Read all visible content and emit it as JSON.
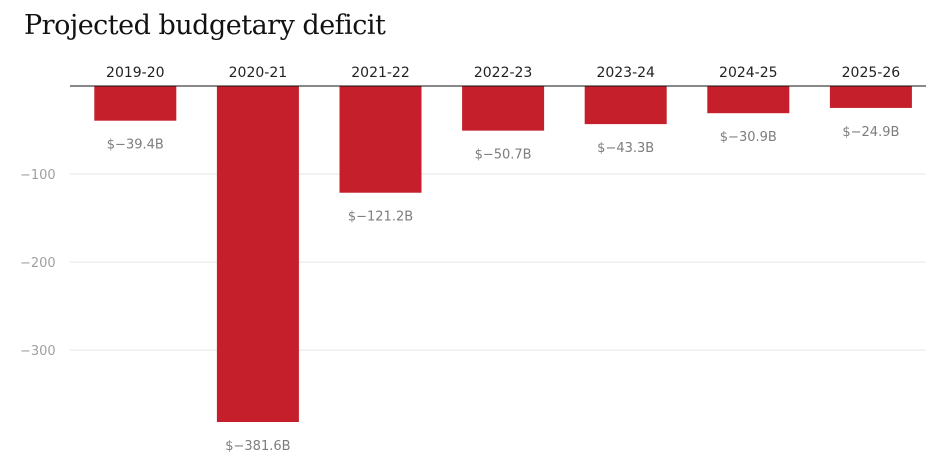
{
  "colors": {
    "bar": "#c41f2a",
    "grid": "#e6e6e6",
    "baseline": "#121212"
  },
  "chart_data": {
    "type": "bar",
    "title": "Projected budgetary deficit",
    "xlabel": "",
    "ylabel": "",
    "categories": [
      "2019-20",
      "2020-21",
      "2021-22",
      "2022-23",
      "2023-24",
      "2024-25",
      "2025-26"
    ],
    "values": [
      -39.4,
      -381.6,
      -121.2,
      -50.7,
      -43.3,
      -30.9,
      -24.9
    ],
    "data_labels": [
      "$−39.4B",
      "$−381.6B",
      "$−121.2B",
      "$−50.7B",
      "$−43.3B",
      "$−30.9B",
      "$−24.9B"
    ],
    "yticks": [
      -100,
      -200,
      -300
    ],
    "ytick_labels": [
      "−100",
      "−200",
      "−300"
    ],
    "ylim": [
      -400,
      0
    ],
    "category_axis_position": "top",
    "grid": true,
    "legend": "none"
  }
}
